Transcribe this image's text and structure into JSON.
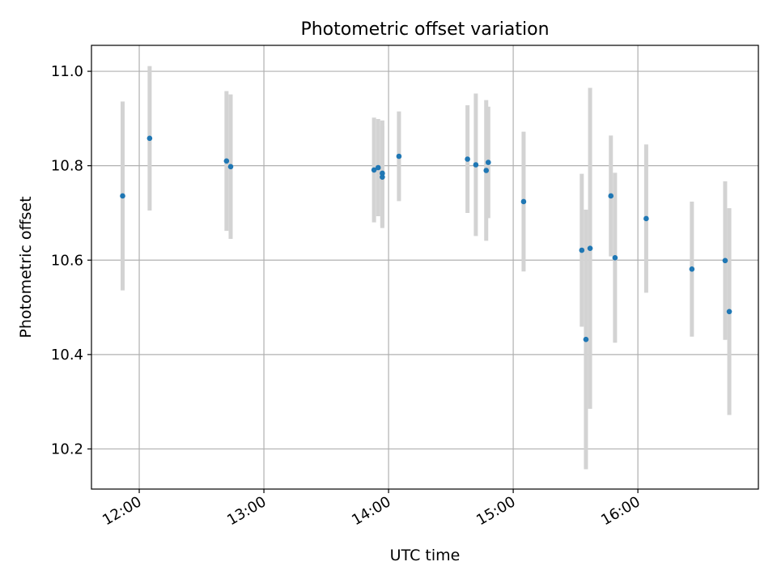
{
  "chart_data": {
    "type": "scatter",
    "title": "Photometric offset variation",
    "xlabel": "UTC time",
    "ylabel": "Photometric offset",
    "x_ticks": [
      "12:00",
      "13:00",
      "14:00",
      "15:00",
      "16:00"
    ],
    "y_ticks": [
      "10.2",
      "10.4",
      "10.6",
      "10.8",
      "11.0"
    ],
    "xlim": [
      "11:37",
      "16:58"
    ],
    "ylim": [
      10.115,
      11.055
    ],
    "grid": true,
    "point_color": "#1f77b4",
    "errorbar_color": "#d3d3d3",
    "points": [
      {
        "x": "11:52",
        "y": 10.736,
        "yerr": 0.2
      },
      {
        "x": "12:05",
        "y": 10.858,
        "yerr": 0.153
      },
      {
        "x": "12:42",
        "y": 10.81,
        "yerr": 0.148
      },
      {
        "x": "12:44",
        "y": 10.798,
        "yerr": 0.153
      },
      {
        "x": "13:53",
        "y": 10.791,
        "yerr": 0.111
      },
      {
        "x": "13:55",
        "y": 10.796,
        "yerr": 0.103
      },
      {
        "x": "13:57",
        "y": 10.784,
        "yerr": 0.112
      },
      {
        "x": "13:57",
        "y": 10.776,
        "yerr": 0.108
      },
      {
        "x": "14:05",
        "y": 10.82,
        "yerr": 0.095
      },
      {
        "x": "14:38",
        "y": 10.814,
        "yerr": 0.114
      },
      {
        "x": "14:42",
        "y": 10.802,
        "yerr": 0.151
      },
      {
        "x": "14:47",
        "y": 10.79,
        "yerr": 0.149
      },
      {
        "x": "14:48",
        "y": 10.807,
        "yerr": 0.118
      },
      {
        "x": "15:05",
        "y": 10.724,
        "yerr": 0.148
      },
      {
        "x": "15:33",
        "y": 10.621,
        "yerr": 0.162
      },
      {
        "x": "15:35",
        "y": 10.432,
        "yerr": 0.275
      },
      {
        "x": "15:37",
        "y": 10.625,
        "yerr": 0.34
      },
      {
        "x": "15:47",
        "y": 10.736,
        "yerr": 0.128
      },
      {
        "x": "15:49",
        "y": 10.605,
        "yerr": 0.18
      },
      {
        "x": "16:04",
        "y": 10.688,
        "yerr": 0.157
      },
      {
        "x": "16:26",
        "y": 10.581,
        "yerr": 0.143
      },
      {
        "x": "16:42",
        "y": 10.599,
        "yerr": 0.168
      },
      {
        "x": "16:44",
        "y": 10.491,
        "yerr": 0.219
      }
    ]
  }
}
